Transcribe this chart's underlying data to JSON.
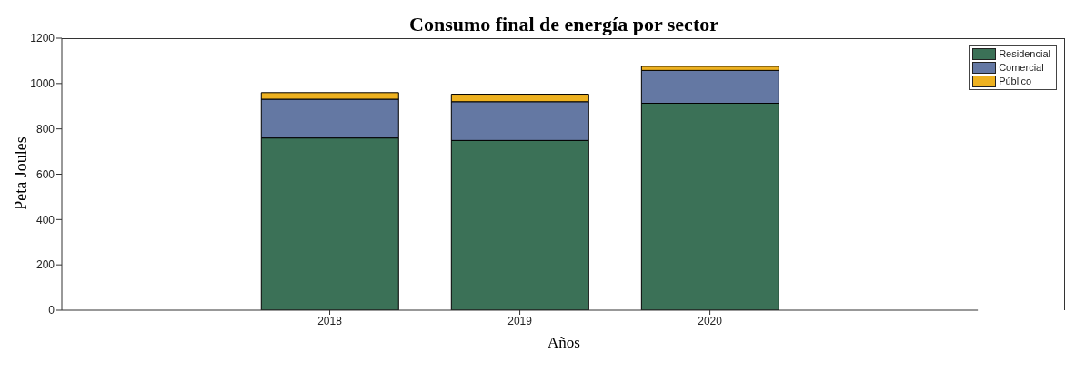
{
  "chart_data": {
    "type": "bar",
    "title": "Consumo final de energía por sector",
    "xlabel": "Años",
    "ylabel": "Peta Joules",
    "categories": [
      "2018",
      "2019",
      "2020"
    ],
    "stacked": true,
    "series": [
      {
        "name": "Residencial",
        "color": "#3b7157",
        "values": [
          760,
          749,
          913
        ]
      },
      {
        "name": "Comercial",
        "color": "#6478a3",
        "values": [
          171,
          171,
          145
        ]
      },
      {
        "name": "Público",
        "color": "#edb120",
        "values": [
          29,
          33,
          18
        ]
      }
    ],
    "ylim": [
      0,
      1200
    ],
    "yticks": [
      0,
      200,
      400,
      600,
      800,
      1000,
      1200
    ],
    "legend": "top right",
    "grid": false
  }
}
